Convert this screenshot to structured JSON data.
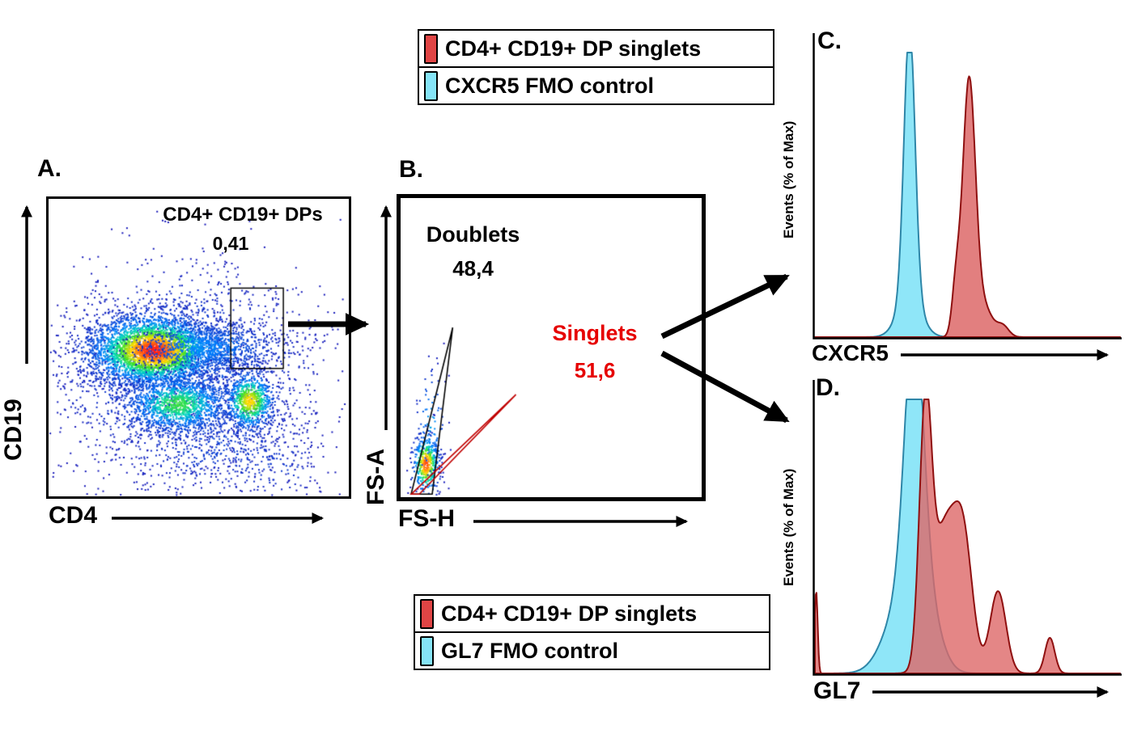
{
  "figure": {
    "background": "#ffffff"
  },
  "panelA": {
    "letter": "A.",
    "gate_label": "CD4+ CD19+ DPs",
    "gate_value": "0,41",
    "x_axis": "CD4",
    "y_axis": "CD19"
  },
  "panelB": {
    "letter": "B.",
    "doublets_label": "Doublets",
    "doublets_value": "48,4",
    "singlets_label": "Singlets",
    "singlets_value": "51,6",
    "singlets_color": "#e60000",
    "x_axis": "FS-H",
    "y_axis": "FS-A"
  },
  "panelC": {
    "letter": "C.",
    "x_axis": "CXCR5",
    "y_axis": "Events (% of Max)"
  },
  "panelD": {
    "letter": "D.",
    "x_axis": "GL7",
    "y_axis": "Events (% of Max)"
  },
  "legend_top": {
    "items": [
      {
        "label": "CD4+ CD19+ DP singlets",
        "color": "#e04545"
      },
      {
        "label": "CXCR5 FMO control",
        "color": "#85e4f7"
      }
    ]
  },
  "legend_bottom": {
    "items": [
      {
        "label": "CD4+ CD19+ DP singlets",
        "color": "#e04545"
      },
      {
        "label": "GL7 FMO control",
        "color": "#85e4f7"
      }
    ]
  },
  "chart_data": [
    {
      "id": "panelA-plot",
      "type": "scatter",
      "subtype": "pseudocolor-density",
      "seed": 11,
      "xlabel": "CD4",
      "ylabel": "CD19",
      "gate": {
        "label": "CD4+ CD19+ DPs",
        "percent": 0.41,
        "x_range": [
          0.607,
          0.782
        ],
        "y_range": [
          0.43,
          0.7
        ]
      },
      "clusters": [
        {
          "name": "background-scatter",
          "center": [
            0.45,
            0.42
          ],
          "sigma": [
            0.22,
            0.17
          ],
          "n": 2200,
          "intensity": 0.18
        },
        {
          "name": "low-right-scatter",
          "center": [
            0.55,
            0.18
          ],
          "sigma": [
            0.18,
            0.09
          ],
          "n": 500,
          "intensity": 0.12
        },
        {
          "name": "far-right-sparse",
          "center": [
            0.75,
            0.1
          ],
          "sigma": [
            0.1,
            0.06
          ],
          "n": 120,
          "intensity": 0.1
        },
        {
          "name": "main-population",
          "center": [
            0.35,
            0.49
          ],
          "sigma": [
            0.108,
            0.06
          ],
          "n": 3600,
          "intensity": 1.0
        },
        {
          "name": "main-right-tail",
          "center": [
            0.52,
            0.5
          ],
          "sigma": [
            0.12,
            0.045
          ],
          "n": 900,
          "intensity": 0.3
        },
        {
          "name": "lower-population",
          "center": [
            0.43,
            0.31
          ],
          "sigma": [
            0.09,
            0.05
          ],
          "n": 1300,
          "intensity": 0.6
        },
        {
          "name": "right-population",
          "center": [
            0.67,
            0.32
          ],
          "sigma": [
            0.042,
            0.05
          ],
          "n": 750,
          "intensity": 0.8
        }
      ]
    },
    {
      "id": "panelB-plot",
      "type": "scatter",
      "subtype": "singlet-gating",
      "seed": 23,
      "xlabel": "FS-H",
      "ylabel": "FS-A",
      "populations": [
        {
          "label": "Doublets",
          "percent": 48.4
        },
        {
          "label": "Singlets",
          "percent": 51.6
        }
      ],
      "gates": [
        {
          "name": "doublets-gate",
          "color": "#000000",
          "points": [
            [
              0.035,
              0.01
            ],
            [
              0.173,
              0.567
            ],
            [
              0.105,
              0.01
            ]
          ]
        },
        {
          "name": "singlets-gate",
          "color": "#c00000",
          "points": [
            [
              0.035,
              0.01
            ],
            [
              0.383,
              0.343
            ],
            [
              0.062,
              0.01
            ]
          ]
        }
      ],
      "clusters": [
        {
          "name": "cell-cluster",
          "center": [
            0.085,
            0.11
          ],
          "sigma": [
            0.022,
            0.05
          ],
          "n": 420,
          "intensity": 0.95
        },
        {
          "name": "vertical-smear",
          "center": [
            0.1,
            0.24
          ],
          "sigma": [
            0.025,
            0.1
          ],
          "n": 90,
          "intensity": 0.35
        }
      ]
    },
    {
      "id": "panelC-plot",
      "type": "histogram-overlay",
      "xlabel": "CXCR5",
      "ylabel": "Events (% of Max)",
      "series": [
        {
          "name": "CXCR5 FMO control",
          "fill": "#85e4f7",
          "fill_opacity": 0.92,
          "stroke": "#2e86a8",
          "peaks": [
            {
              "center": 0.31,
              "sigma": 0.018,
              "height": 0.96
            },
            {
              "center": 0.31,
              "sigma": 0.038,
              "height": 0.14
            }
          ]
        },
        {
          "name": "CD4+ CD19+ DP singlets",
          "fill": "#dd6868",
          "fill_opacity": 0.85,
          "stroke": "#8f1010",
          "peaks": [
            {
              "center": 0.505,
              "sigma": 0.021,
              "height": 0.9
            },
            {
              "center": 0.462,
              "sigma": 0.013,
              "height": 0.16
            },
            {
              "center": 0.555,
              "sigma": 0.026,
              "height": 0.1
            },
            {
              "center": 0.615,
              "sigma": 0.02,
              "height": 0.04
            }
          ]
        }
      ]
    },
    {
      "id": "panelD-plot",
      "type": "histogram-overlay",
      "xlabel": "GL7",
      "ylabel": "Events (% of Max)",
      "series": [
        {
          "name": "GL7 FMO control",
          "fill": "#85e4f7",
          "fill_opacity": 0.92,
          "stroke": "#2e86a8",
          "peaks": [
            {
              "center": 0.325,
              "sigma": 0.03,
              "height": 0.95
            },
            {
              "center": 0.295,
              "sigma": 0.06,
              "height": 0.28
            },
            {
              "center": 0.365,
              "sigma": 0.045,
              "height": 0.18
            }
          ]
        },
        {
          "name": "CD4+ CD19+ DP singlets",
          "fill": "#dd6868",
          "fill_opacity": 0.8,
          "stroke": "#8f1010",
          "peaks": [
            {
              "center": 0.004,
              "sigma": 0.005,
              "height": 0.3
            },
            {
              "center": 0.362,
              "sigma": 0.02,
              "height": 0.9
            },
            {
              "center": 0.425,
              "sigma": 0.04,
              "height": 0.52
            },
            {
              "center": 0.488,
              "sigma": 0.03,
              "height": 0.42
            },
            {
              "center": 0.6,
              "sigma": 0.026,
              "height": 0.3
            },
            {
              "center": 0.77,
              "sigma": 0.016,
              "height": 0.13
            }
          ]
        }
      ]
    }
  ]
}
